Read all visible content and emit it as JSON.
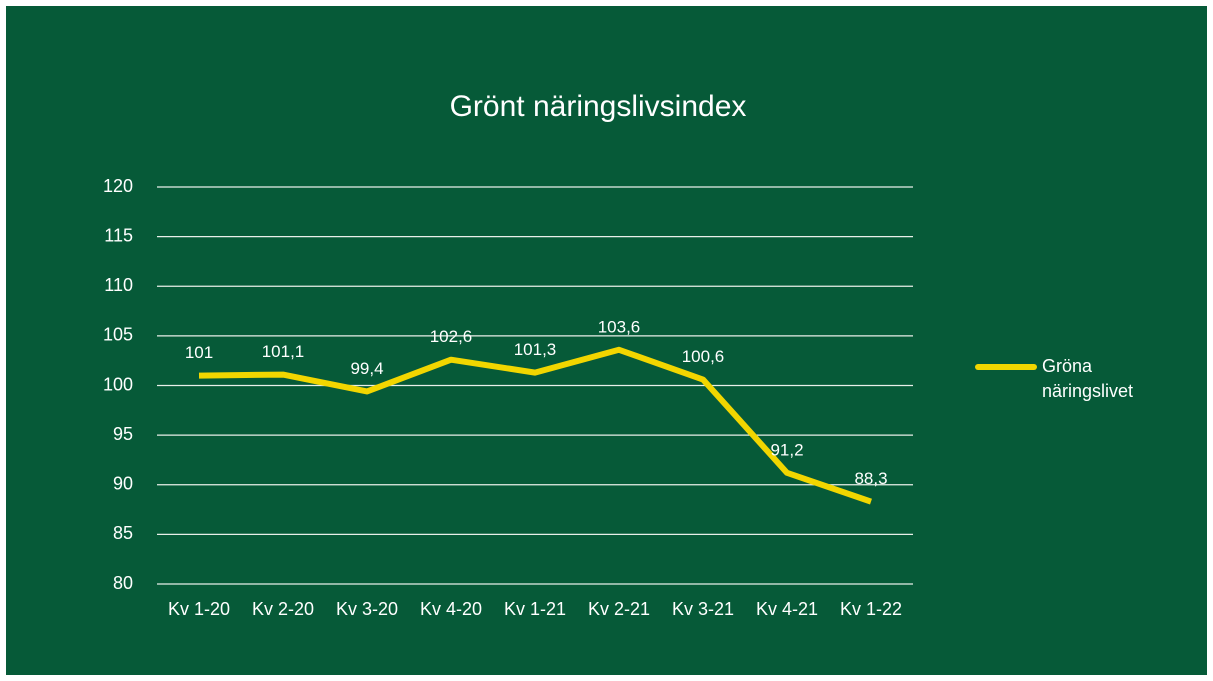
{
  "chart_data": {
    "type": "line",
    "title": "Grönt näringslivsindex",
    "categories": [
      "Kv 1-20",
      "Kv 2-20",
      "Kv 3-20",
      "Kv 4-20",
      "Kv 1-21",
      "Kv 2-21",
      "Kv 3-21",
      "Kv 4-21",
      "Kv 1-22"
    ],
    "series": [
      {
        "name": "Gröna näringslivet",
        "color": "#f2d600",
        "values": [
          101,
          101.1,
          99.4,
          102.6,
          101.3,
          103.6,
          100.6,
          91.2,
          88.3
        ],
        "value_labels": [
          "101",
          "101,1",
          "99,4",
          "102,6",
          "101,3",
          "103,6",
          "100,6",
          "91,2",
          "88,3"
        ]
      }
    ],
    "ylim": [
      80,
      120
    ],
    "yticks": [
      80,
      85,
      90,
      95,
      100,
      105,
      110,
      115,
      120
    ],
    "grid": true,
    "legend": "right"
  }
}
